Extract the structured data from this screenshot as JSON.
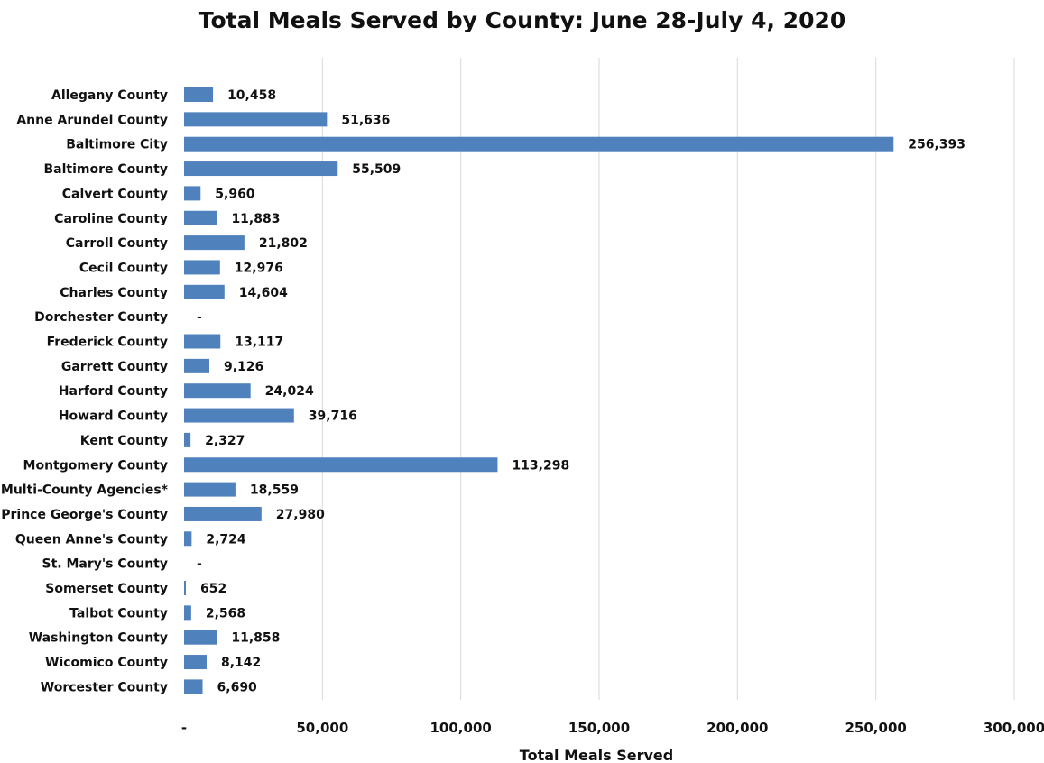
{
  "chart_data": {
    "type": "bar",
    "orientation": "horizontal",
    "title": "Total Meals Served by County: June 28-July 4, 2020",
    "xlabel": "Total Meals Served",
    "ylabel": "",
    "xlim": [
      0,
      300000
    ],
    "x_ticks": [
      0,
      50000,
      100000,
      150000,
      200000,
      250000,
      300000
    ],
    "x_tick_labels": [
      "-",
      "50,000",
      "100,000",
      "150,000",
      "200,000",
      "250,000",
      "300,000"
    ],
    "grid": "vertical",
    "bar_color": "#4f81bd",
    "categories": [
      "Allegany County",
      "Anne Arundel County",
      "Baltimore City",
      "Baltimore County",
      "Calvert County",
      "Caroline County",
      "Carroll County",
      "Cecil County",
      "Charles County",
      "Dorchester County",
      "Frederick County",
      "Garrett County",
      "Harford County",
      "Howard County",
      "Kent County",
      "Montgomery County",
      "Multi-County Agencies*",
      "Prince George's County",
      "Queen Anne's County",
      "St. Mary's County",
      "Somerset County",
      "Talbot County",
      "Washington County",
      "Wicomico County",
      "Worcester County"
    ],
    "values": [
      10458,
      51636,
      256393,
      55509,
      5960,
      11883,
      21802,
      12976,
      14604,
      0,
      13117,
      9126,
      24024,
      39716,
      2327,
      113298,
      18559,
      27980,
      2724,
      0,
      652,
      2568,
      11858,
      8142,
      6690
    ],
    "data_labels": [
      "10,458",
      "51,636",
      "256,393",
      "55,509",
      "5,960",
      "11,883",
      "21,802",
      "12,976",
      "14,604",
      "-",
      "13,117",
      "9,126",
      "24,024",
      "39,716",
      "2,327",
      "113,298",
      "18,559",
      "27,980",
      "2,724",
      "-",
      "652",
      "2,568",
      "11,858",
      "8,142",
      "6,690"
    ]
  }
}
